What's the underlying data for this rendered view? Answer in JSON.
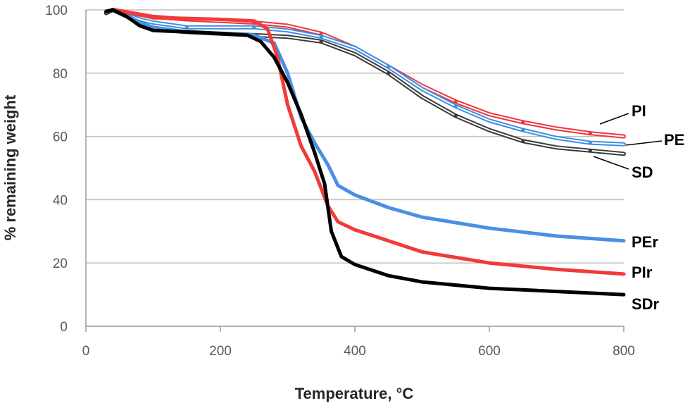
{
  "chart_data": {
    "type": "line",
    "title": "",
    "xlabel": "Temperature, °C",
    "ylabel": "% remaining weight",
    "xlim": [
      0,
      800
    ],
    "ylim": [
      0,
      100
    ],
    "xticks": [
      0,
      200,
      400,
      600,
      800
    ],
    "yticks": [
      0,
      20,
      40,
      60,
      80,
      100
    ],
    "grid": "horizontal",
    "legend": "inline-labels-right",
    "series": [
      {
        "name": "PI",
        "color": "#f2333b",
        "style": "double",
        "x": [
          30,
          40,
          80,
          100,
          150,
          200,
          250,
          300,
          350,
          400,
          450,
          500,
          550,
          600,
          650,
          700,
          750,
          800
        ],
        "y": [
          99,
          100,
          98.5,
          97.8,
          97,
          96.5,
          96,
          95,
          92.5,
          88,
          82,
          76,
          71,
          67,
          64.5,
          62.5,
          61,
          60
        ]
      },
      {
        "name": "PE",
        "color": "#3d8fe0",
        "style": "double",
        "x": [
          30,
          40,
          80,
          100,
          150,
          200,
          250,
          300,
          350,
          400,
          450,
          500,
          550,
          600,
          650,
          700,
          750,
          800
        ],
        "y": [
          99,
          100,
          97,
          96,
          94.5,
          94.5,
          94.5,
          93.5,
          91.5,
          88,
          82,
          75,
          69.5,
          65,
          62,
          59.5,
          58,
          57.5
        ]
      },
      {
        "name": "SD",
        "color": "#3a3a3a",
        "style": "double",
        "x": [
          30,
          40,
          80,
          100,
          150,
          200,
          250,
          300,
          350,
          400,
          450,
          500,
          550,
          600,
          650,
          700,
          750,
          800
        ],
        "y": [
          99,
          100,
          96,
          94,
          93,
          92.5,
          92,
          91.5,
          90,
          86,
          80,
          72.5,
          66.5,
          62,
          58.5,
          56.5,
          55.5,
          54.5
        ]
      },
      {
        "name": "PEr",
        "color": "#4a90e2",
        "style": "solid",
        "x": [
          30,
          40,
          60,
          80,
          100,
          150,
          200,
          250,
          280,
          300,
          320,
          340,
          360,
          375,
          400,
          450,
          500,
          600,
          700,
          800
        ],
        "y": [
          99.5,
          100,
          98.5,
          96,
          94.5,
          93,
          92.5,
          92,
          89.5,
          80,
          66,
          58,
          51,
          44.5,
          41.5,
          37.5,
          34.5,
          31,
          28.5,
          27
        ]
      },
      {
        "name": "PIr",
        "color": "#f23a3a",
        "style": "solid",
        "x": [
          30,
          40,
          80,
          100,
          150,
          200,
          250,
          270,
          285,
          300,
          320,
          340,
          360,
          375,
          400,
          450,
          500,
          600,
          700,
          800
        ],
        "y": [
          99.5,
          100,
          98.5,
          97.5,
          97.3,
          97,
          96.5,
          94,
          85,
          70,
          57,
          49,
          38,
          33,
          30.5,
          27,
          23.5,
          20,
          18,
          16.5
        ]
      },
      {
        "name": "SDr",
        "color": "#000000",
        "style": "solid",
        "x": [
          30,
          40,
          60,
          80,
          100,
          150,
          200,
          240,
          260,
          280,
          300,
          320,
          340,
          355,
          365,
          380,
          400,
          450,
          500,
          600,
          700,
          800
        ],
        "y": [
          99.5,
          100,
          98,
          95,
          93.5,
          93,
          92.5,
          92,
          90,
          85,
          77,
          67,
          55,
          45,
          30,
          22,
          19.5,
          16,
          14,
          12,
          11,
          10
        ]
      }
    ]
  }
}
